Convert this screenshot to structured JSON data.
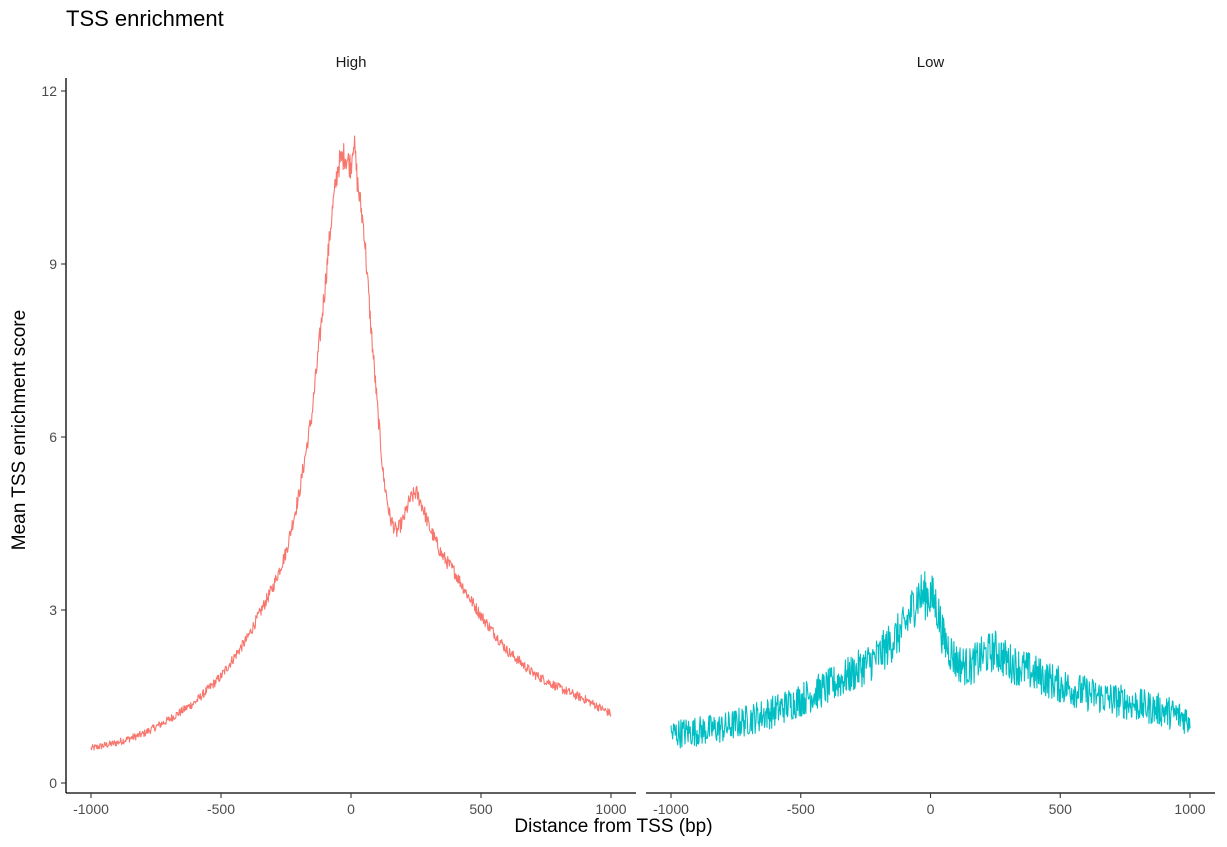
{
  "chart_data": {
    "type": "line",
    "title": "TSS enrichment",
    "xlabel": "Distance from TSS (bp)",
    "ylabel": "Mean TSS enrichment score",
    "xlim": [
      -1000,
      1000
    ],
    "ylim": [
      0,
      12
    ],
    "x_ticks": [
      -1000,
      -500,
      0,
      500,
      1000
    ],
    "y_ticks": [
      0,
      3,
      6,
      9,
      12
    ],
    "x_tick_labels": [
      "-1000",
      "-500",
      "0",
      "500",
      "1000"
    ],
    "y_tick_labels": [
      "0",
      "3",
      "6",
      "9",
      "12"
    ],
    "grid": false,
    "legend": "none",
    "facets": [
      {
        "label": "High",
        "color": "#F8766D",
        "noise": 0.05,
        "points": [
          [
            -1000,
            0.6
          ],
          [
            -900,
            0.7
          ],
          [
            -800,
            0.85
          ],
          [
            -700,
            1.1
          ],
          [
            -600,
            1.4
          ],
          [
            -500,
            1.85
          ],
          [
            -400,
            2.5
          ],
          [
            -300,
            3.4
          ],
          [
            -250,
            4.0
          ],
          [
            -200,
            5.0
          ],
          [
            -150,
            6.4
          ],
          [
            -100,
            8.6
          ],
          [
            -75,
            9.8
          ],
          [
            -50,
            10.7
          ],
          [
            -25,
            10.9
          ],
          [
            0,
            10.7
          ],
          [
            10,
            11.2
          ],
          [
            25,
            10.4
          ],
          [
            50,
            9.6
          ],
          [
            75,
            8.0
          ],
          [
            100,
            6.6
          ],
          [
            125,
            5.3
          ],
          [
            150,
            4.6
          ],
          [
            175,
            4.35
          ],
          [
            200,
            4.55
          ],
          [
            225,
            4.9
          ],
          [
            250,
            5.05
          ],
          [
            275,
            4.8
          ],
          [
            300,
            4.45
          ],
          [
            350,
            3.95
          ],
          [
            400,
            3.65
          ],
          [
            450,
            3.25
          ],
          [
            500,
            2.9
          ],
          [
            600,
            2.3
          ],
          [
            700,
            1.9
          ],
          [
            800,
            1.65
          ],
          [
            900,
            1.45
          ],
          [
            1000,
            1.2
          ]
        ]
      },
      {
        "label": "Low",
        "color": "#00BFC4",
        "noise": 0.2,
        "points": [
          [
            -1000,
            0.85
          ],
          [
            -900,
            0.9
          ],
          [
            -800,
            0.95
          ],
          [
            -700,
            1.1
          ],
          [
            -600,
            1.25
          ],
          [
            -500,
            1.45
          ],
          [
            -400,
            1.65
          ],
          [
            -300,
            1.9
          ],
          [
            -200,
            2.2
          ],
          [
            -100,
            2.7
          ],
          [
            -50,
            3.25
          ],
          [
            0,
            3.25
          ],
          [
            25,
            3.05
          ],
          [
            50,
            2.5
          ],
          [
            100,
            2.1
          ],
          [
            150,
            2.0
          ],
          [
            200,
            2.2
          ],
          [
            250,
            2.3
          ],
          [
            300,
            2.1
          ],
          [
            400,
            1.9
          ],
          [
            500,
            1.7
          ],
          [
            600,
            1.55
          ],
          [
            700,
            1.45
          ],
          [
            800,
            1.35
          ],
          [
            900,
            1.25
          ],
          [
            1000,
            1.1
          ]
        ]
      }
    ]
  }
}
